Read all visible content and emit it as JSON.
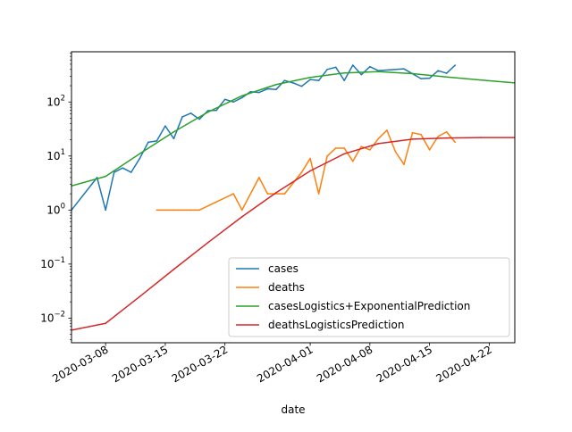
{
  "chart_data": {
    "type": "line",
    "title": "",
    "xlabel": "date",
    "ylabel": "",
    "yscale": "log",
    "xlim": [
      "2020-03-04",
      "2020-04-25"
    ],
    "ylim": [
      0.0035,
      850
    ],
    "x_ticks": [
      "2020-03-08",
      "2020-03-15",
      "2020-03-22",
      "2020-04-01",
      "2020-04-08",
      "2020-04-15",
      "2020-04-22"
    ],
    "y_ticks": [
      {
        "value": 0.01,
        "base": "10",
        "exp": "−2"
      },
      {
        "value": 0.1,
        "base": "10",
        "exp": "−1"
      },
      {
        "value": 1,
        "base": "10",
        "exp": "0"
      },
      {
        "value": 10,
        "base": "10",
        "exp": "1"
      },
      {
        "value": 100,
        "base": "10",
        "exp": "2"
      }
    ],
    "legend_position": "lower-right",
    "series": [
      {
        "name": "cases",
        "color": "#1f77b4",
        "x": [
          "2020-03-04",
          "2020-03-07",
          "2020-03-08",
          "2020-03-09",
          "2020-03-10",
          "2020-03-11",
          "2020-03-12",
          "2020-03-13",
          "2020-03-14",
          "2020-03-15",
          "2020-03-16",
          "2020-03-17",
          "2020-03-18",
          "2020-03-19",
          "2020-03-20",
          "2020-03-21",
          "2020-03-22",
          "2020-03-23",
          "2020-03-24",
          "2020-03-25",
          "2020-03-26",
          "2020-03-27",
          "2020-03-28",
          "2020-03-29",
          "2020-03-30",
          "2020-03-31",
          "2020-04-01",
          "2020-04-02",
          "2020-04-03",
          "2020-04-04",
          "2020-04-05",
          "2020-04-06",
          "2020-04-07",
          "2020-04-08",
          "2020-04-09",
          "2020-04-12",
          "2020-04-14",
          "2020-04-15",
          "2020-04-16",
          "2020-04-17",
          "2020-04-18"
        ],
        "values": [
          1,
          4,
          1,
          5,
          6,
          5,
          9,
          18,
          19,
          36,
          21,
          53,
          62,
          48,
          69,
          70,
          112,
          100,
          120,
          155,
          150,
          175,
          170,
          250,
          225,
          195,
          260,
          250,
          400,
          440,
          250,
          480,
          320,
          450,
          380,
          410,
          270,
          275,
          380,
          340,
          480
        ]
      },
      {
        "name": "deaths",
        "color": "#ff7f0e",
        "x": [
          "2020-03-14",
          "2020-03-16",
          "2020-03-18",
          "2020-03-19",
          "2020-03-23",
          "2020-03-24",
          "2020-03-26",
          "2020-03-27",
          "2020-03-29",
          "2020-03-31",
          "2020-04-01",
          "2020-04-02",
          "2020-04-03",
          "2020-04-04",
          "2020-04-05",
          "2020-04-06",
          "2020-04-07",
          "2020-04-08",
          "2020-04-09",
          "2020-04-10",
          "2020-04-11",
          "2020-04-12",
          "2020-04-13",
          "2020-04-14",
          "2020-04-15",
          "2020-04-16",
          "2020-04-17",
          "2020-04-18"
        ],
        "values": [
          1,
          1,
          1,
          1,
          2,
          1,
          4,
          2,
          2,
          5,
          9,
          2,
          10,
          14,
          14,
          8,
          15,
          13,
          21,
          30,
          12,
          7,
          27,
          25,
          13,
          23,
          28,
          18
        ]
      },
      {
        "name": "casesLogistics+ExponentialPrediction",
        "color": "#2ca02c",
        "x": [
          "2020-03-04",
          "2020-03-08",
          "2020-03-12",
          "2020-03-16",
          "2020-03-20",
          "2020-03-24",
          "2020-03-28",
          "2020-04-01",
          "2020-04-05",
          "2020-04-09",
          "2020-04-13",
          "2020-04-17",
          "2020-04-21",
          "2020-04-25"
        ],
        "values": [
          2.8,
          4.2,
          11,
          28,
          65,
          130,
          210,
          285,
          345,
          365,
          335,
          290,
          255,
          225
        ]
      },
      {
        "name": "deathsLogisticsPrediction",
        "color": "#d62728",
        "x": [
          "2020-03-04",
          "2020-03-08",
          "2020-03-12",
          "2020-03-16",
          "2020-03-20",
          "2020-03-24",
          "2020-03-28",
          "2020-04-01",
          "2020-04-05",
          "2020-04-09",
          "2020-04-13",
          "2020-04-17",
          "2020-04-21",
          "2020-04-25"
        ],
        "values": [
          0.006,
          0.008,
          0.025,
          0.08,
          0.25,
          0.75,
          2.1,
          5.3,
          11,
          17,
          20.5,
          21.5,
          22,
          22
        ]
      }
    ]
  }
}
